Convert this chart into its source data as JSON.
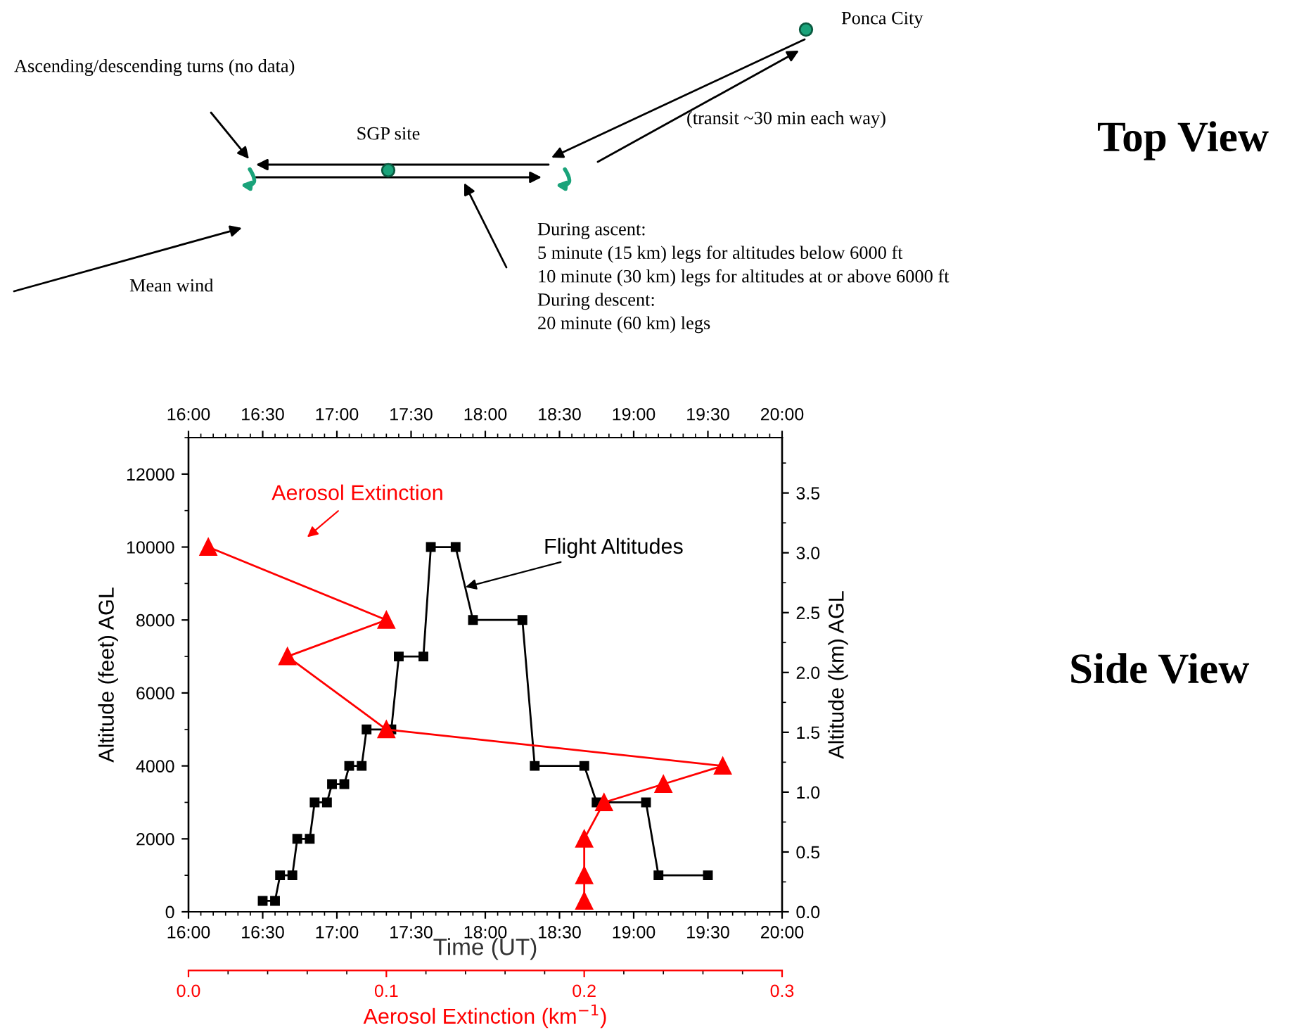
{
  "chart_data": {
    "type": "line",
    "xlabel": "Time (UT)",
    "ylabel": "Altitude (feet) AGL",
    "y2label": "Altitude (km) AGL",
    "x2label": "Aerosol Extinction (km$^{−1}$)",
    "xlim": [
      16,
      20
    ],
    "xticks": [
      {
        "value": 16,
        "label": "16:00"
      },
      {
        "value": 16.5,
        "label": "16:30"
      },
      {
        "value": 17,
        "label": "17:00"
      },
      {
        "value": 17.5,
        "label": "17:30"
      },
      {
        "value": 18,
        "label": "18:00"
      },
      {
        "value": 18.5,
        "label": "18:30"
      },
      {
        "value": 19,
        "label": "19:00"
      },
      {
        "value": 19.5,
        "label": "19:30"
      },
      {
        "value": 20,
        "label": "20:00"
      }
    ],
    "x2lim": [
      0,
      0.3
    ],
    "x2ticks": [
      {
        "value": 0,
        "label": "0.0"
      },
      {
        "value": 0.1,
        "label": "0.1"
      },
      {
        "value": 0.2,
        "label": "0.2"
      },
      {
        "value": 0.3,
        "label": "0.3"
      }
    ],
    "ylim": [
      0,
      13000
    ],
    "yticks": [
      0,
      2000,
      4000,
      6000,
      8000,
      10000,
      12000
    ],
    "y2lim": [
      0,
      3.9624
    ],
    "y2ticks": [
      {
        "value": 0,
        "label": "0.0"
      },
      {
        "value": 0.5,
        "label": "0.5"
      },
      {
        "value": 1,
        "label": "1.0"
      },
      {
        "value": 1.5,
        "label": "1.5"
      },
      {
        "value": 2,
        "label": "2.0"
      },
      {
        "value": 2.5,
        "label": "2.5"
      },
      {
        "value": 3,
        "label": "3.0"
      },
      {
        "value": 3.5,
        "label": "3.5"
      }
    ],
    "grid": false,
    "legend": false,
    "series": [
      {
        "color": "#000000",
        "marker": "square",
        "x": [
          16.5,
          16.583,
          16.617,
          16.7,
          16.733,
          16.817,
          16.85,
          16.933,
          16.967,
          17.05,
          17.083,
          17.167,
          17.2,
          17.367,
          17.417,
          17.583,
          17.633,
          17.8,
          17.917,
          18.25,
          18.333,
          18.667,
          18.75,
          19.083,
          19.167,
          19.5
        ],
        "values": [
          300,
          300,
          1000,
          1000,
          2000,
          2000,
          3000,
          3000,
          3500,
          3500,
          4000,
          4000,
          5000,
          5000,
          7000,
          7000,
          10000,
          10000,
          8000,
          8000,
          4000,
          4000,
          3000,
          3000,
          1000,
          1000
        ]
      },
      {
        "color": "#ff0000",
        "marker": "triangle",
        "axis": "x2",
        "x": [
          0.01,
          0.1,
          0.05,
          0.1,
          0.27,
          0.24,
          0.21,
          0.2,
          0.2,
          0.2
        ],
        "values": [
          10000,
          8000,
          7000,
          5000,
          4000,
          3500,
          3000,
          2000,
          1000,
          300
        ]
      }
    ],
    "annotations": [
      {
        "text": "Flight Altitudes",
        "x": 17.867,
        "y": 8900
      },
      "Aerosol Extinction",
      "Top View",
      "Side View",
      "Ascending/descending turns (no data)",
      "SGP site",
      "Ponca City",
      "(transit ~30 min each way)",
      "During ascent:\n5 minute (15 km) legs for altitudes below 6000 ft\n10 minute (30 km) legs for altitudes at or above 6000 ft\nDuring descent:\n20 minute (60 km) legs",
      "Mean wind"
    ]
  }
}
